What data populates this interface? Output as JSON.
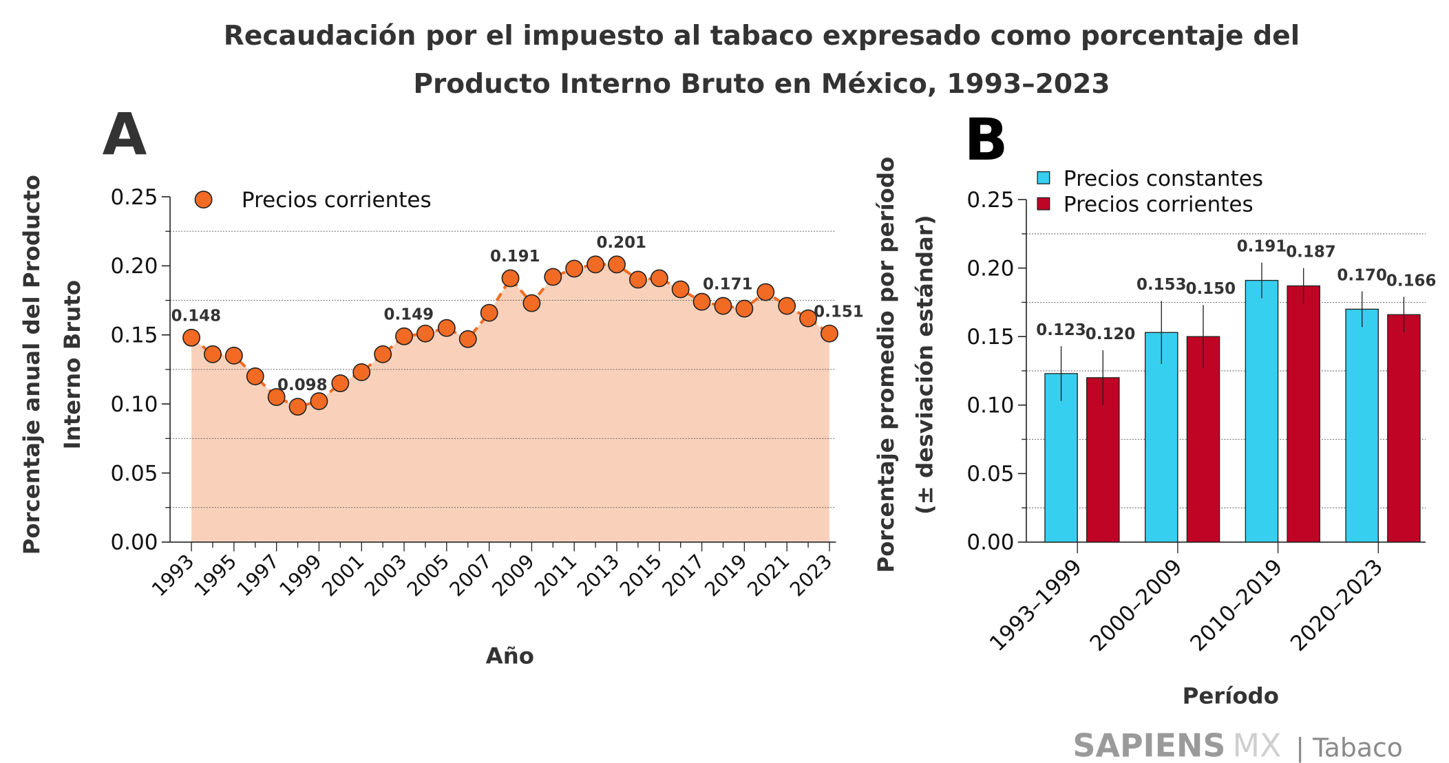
{
  "title_line1": "Recaudación por el impuesto al tabaco expresado como porcentaje del",
  "title_line2": "Producto Interno Bruto en México, 1993–2023",
  "logo": {
    "brand": "SAPIENS",
    "brand2": "MX",
    "section": "| Tabaco"
  },
  "chart_data": [
    {
      "panel": "A",
      "type": "line",
      "ylabel_line1": "Porcentaje anual del Producto",
      "ylabel_line2": "Interno Bruto",
      "xlabel": "Año",
      "ylim": [
        0,
        0.25
      ],
      "yticks": [
        "0.00",
        "0.05",
        "0.10",
        "0.15",
        "0.20",
        "0.25"
      ],
      "grid": "dotted minor horizontal",
      "legend_placement": "top-left",
      "xtick_labels": [
        "1993",
        "1995",
        "1997",
        "1999",
        "2001",
        "2003",
        "2005",
        "2007",
        "2009",
        "2011",
        "2013",
        "2015",
        "2017",
        "2019",
        "2021",
        "2023"
      ],
      "series": [
        {
          "name": "Precios corrientes",
          "color": "#F26B24",
          "fill_color": "#F9D1BA",
          "x": [
            1993,
            1994,
            1995,
            1996,
            1997,
            1998,
            1999,
            2000,
            2001,
            2002,
            2003,
            2004,
            2005,
            2006,
            2007,
            2008,
            2009,
            2010,
            2011,
            2012,
            2013,
            2014,
            2015,
            2016,
            2017,
            2018,
            2019,
            2020,
            2021,
            2022,
            2023
          ],
          "y": [
            0.148,
            0.136,
            0.135,
            0.12,
            0.105,
            0.098,
            0.102,
            0.115,
            0.123,
            0.136,
            0.149,
            0.151,
            0.155,
            0.147,
            0.166,
            0.191,
            0.173,
            0.192,
            0.198,
            0.201,
            0.201,
            0.19,
            0.191,
            0.183,
            0.174,
            0.171,
            0.169,
            0.181,
            0.171,
            0.162,
            0.151
          ]
        }
      ],
      "annotations": [
        {
          "x": 1993,
          "label": "0.148"
        },
        {
          "x": 1998,
          "label": "0.098"
        },
        {
          "x": 2003,
          "label": "0.149"
        },
        {
          "x": 2008,
          "label": "0.191"
        },
        {
          "x": 2013,
          "label": "0.201"
        },
        {
          "x": 2018,
          "label": "0.171"
        },
        {
          "x": 2023,
          "label": "0.151"
        }
      ]
    },
    {
      "panel": "B",
      "type": "bar",
      "ylabel_line1": "Porcentaje promedio por período",
      "ylabel_line2": "(± desviación estándar)",
      "xlabel": "Período",
      "ylim": [
        0,
        0.25
      ],
      "yticks": [
        "0.00",
        "0.05",
        "0.10",
        "0.15",
        "0.20",
        "0.25"
      ],
      "grid": "dotted minor horizontal",
      "legend_placement": "top-left",
      "categories": [
        "1993–1999",
        "2000–2009",
        "2010–2019",
        "2020–2023"
      ],
      "series": [
        {
          "name": "Precios constantes",
          "color": "#36CFF0",
          "values": [
            0.123,
            0.153,
            0.191,
            0.17
          ],
          "sd": [
            0.02,
            0.023,
            0.013,
            0.013
          ],
          "labels": [
            "0.123",
            "0.153",
            "0.191",
            "0.170"
          ]
        },
        {
          "name": "Precios corrientes",
          "color": "#C00425",
          "values": [
            0.12,
            0.15,
            0.187,
            0.166
          ],
          "sd": [
            0.02,
            0.023,
            0.013,
            0.013
          ],
          "labels": [
            "0.120",
            "0.150",
            "0.187",
            "0.166"
          ]
        }
      ]
    }
  ]
}
